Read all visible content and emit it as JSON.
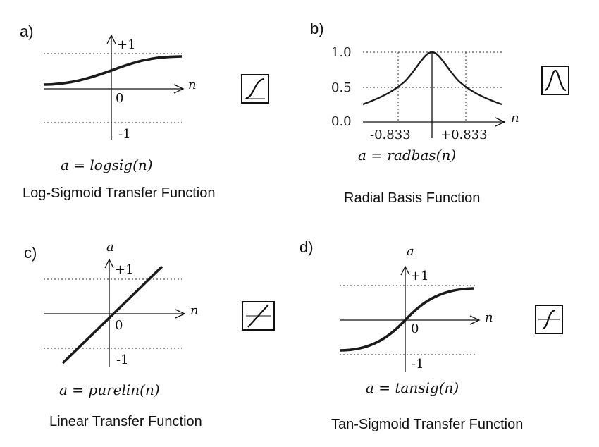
{
  "panels": {
    "a": {
      "tag": "a)",
      "y_pos": "+1",
      "origin": "0",
      "y_neg": "-1",
      "x_axis": "n",
      "equation": "a = logsig(n)",
      "caption": "Log-Sigmoid Transfer Function",
      "icon": "sigmoid-icon"
    },
    "b": {
      "tag": "b)",
      "y_tick_top": "1.0",
      "y_tick_mid": "0.5",
      "y_tick_zero": "0.0",
      "x_tick_left": "-0.833",
      "x_tick_right": "+0.833",
      "x_axis": "n",
      "equation": "a = radbas(n)",
      "caption": "Radial Basis Function",
      "icon": "bell-icon"
    },
    "c": {
      "tag": "c)",
      "y_axis": "a",
      "y_pos": "+1",
      "origin": "0",
      "y_neg": "-1",
      "x_axis": "n",
      "equation": "a = purelin(n)",
      "caption": "Linear Transfer Function",
      "icon": "linear-icon"
    },
    "d": {
      "tag": "d)",
      "y_axis": "a",
      "y_pos": "+1",
      "origin": "0",
      "y_neg": "-1",
      "x_axis": "n",
      "equation": "a = tansig(n)",
      "caption": "Tan-Sigmoid Transfer Function",
      "icon": "tan-sigmoid-icon"
    }
  },
  "colors": {
    "ink": "#111111",
    "curve": "#1a1a1a",
    "guide": "#555555"
  }
}
